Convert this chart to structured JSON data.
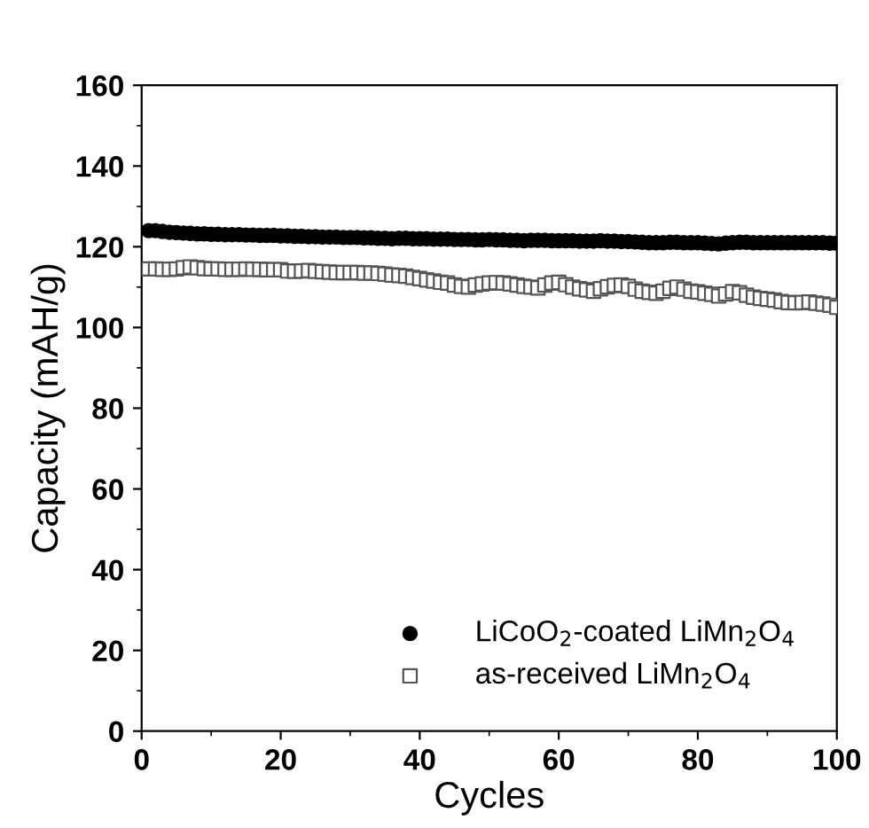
{
  "chart_data": {
    "type": "scatter",
    "xlabel": "Cycles",
    "ylabel": "Capacity (mAH/g)",
    "xlim": [
      0,
      100
    ],
    "xticks": [
      0,
      20,
      40,
      60,
      80,
      100
    ],
    "ylim": [
      0,
      160
    ],
    "yticks": [
      0,
      20,
      40,
      60,
      80,
      100,
      120,
      140,
      160
    ],
    "grid": false,
    "legend": "bottom right",
    "series": [
      {
        "name": "LiCoO$_{2}$-coated LiMn$_{2}$O$_{4}$",
        "color": "#000000",
        "marker": "circle",
        "x": [
          1,
          2,
          3,
          4,
          5,
          6,
          7,
          8,
          9,
          10,
          11,
          12,
          13,
          14,
          15,
          16,
          17,
          18,
          19,
          20,
          21,
          22,
          23,
          24,
          25,
          26,
          27,
          28,
          29,
          30,
          31,
          32,
          33,
          34,
          35,
          36,
          37,
          38,
          39,
          40,
          41,
          42,
          43,
          44,
          45,
          46,
          47,
          48,
          49,
          50,
          51,
          52,
          53,
          54,
          55,
          56,
          57,
          58,
          59,
          60,
          61,
          62,
          63,
          64,
          65,
          66,
          67,
          68,
          69,
          70,
          71,
          72,
          73,
          74,
          75,
          76,
          77,
          78,
          79,
          80,
          81,
          82,
          83,
          84,
          85,
          86,
          87,
          88,
          89,
          90,
          91,
          92,
          93,
          94,
          95,
          96,
          97,
          98,
          99,
          100
        ],
        "values": [
          124,
          124,
          123.8,
          123.6,
          123.5,
          123.4,
          123.3,
          123.2,
          123.2,
          123.1,
          123.1,
          123,
          123,
          123,
          122.9,
          122.9,
          122.8,
          122.8,
          122.8,
          122.7,
          122.7,
          122.6,
          122.6,
          122.5,
          122.5,
          122.4,
          122.4,
          122.4,
          122.3,
          122.3,
          122.3,
          122.2,
          122.2,
          122.1,
          122.1,
          122,
          122.1,
          122.1,
          122,
          122,
          122,
          121.9,
          121.9,
          121.9,
          121.8,
          121.8,
          121.8,
          121.7,
          121.7,
          121.8,
          121.7,
          121.7,
          121.6,
          121.6,
          121.5,
          121.6,
          121.6,
          121.6,
          121.5,
          121.5,
          121.5,
          121.5,
          121.4,
          121.4,
          121.4,
          121.5,
          121.4,
          121.4,
          121.3,
          121.3,
          121.2,
          121.1,
          121,
          121,
          121,
          121.1,
          121.1,
          121,
          121,
          121,
          120.9,
          120.8,
          120.7,
          120.9,
          121,
          121.1,
          121.1,
          121,
          121,
          121,
          121,
          121,
          121,
          121,
          121,
          121,
          121,
          121,
          120.9,
          120.9
        ]
      },
      {
        "name": "as-received LiMn$_{2}$O$_{4}$",
        "color": "#555555",
        "marker": "square",
        "x": [
          1,
          2,
          3,
          4,
          5,
          6,
          7,
          8,
          9,
          10,
          11,
          12,
          13,
          14,
          15,
          16,
          17,
          18,
          19,
          20,
          21,
          22,
          23,
          24,
          25,
          26,
          27,
          28,
          29,
          30,
          31,
          32,
          33,
          34,
          35,
          36,
          37,
          38,
          39,
          40,
          41,
          42,
          43,
          44,
          45,
          46,
          47,
          48,
          49,
          50,
          51,
          52,
          53,
          54,
          55,
          56,
          57,
          58,
          59,
          60,
          61,
          62,
          63,
          64,
          65,
          66,
          67,
          68,
          69,
          70,
          71,
          72,
          73,
          74,
          75,
          76,
          77,
          78,
          79,
          80,
          81,
          82,
          83,
          84,
          85,
          86,
          87,
          88,
          89,
          90,
          91,
          92,
          93,
          94,
          95,
          96,
          97,
          98,
          99,
          100
        ],
        "values": [
          114.5,
          114.5,
          114.4,
          114.4,
          114.5,
          114.8,
          115,
          114.8,
          114.6,
          114.5,
          114.5,
          114.4,
          114.4,
          114.4,
          114.5,
          114.4,
          114.4,
          114.3,
          114.3,
          114.3,
          114,
          113.9,
          114,
          114.1,
          113.9,
          113.8,
          113.7,
          113.6,
          113.6,
          113.6,
          113.6,
          113.5,
          113.5,
          113.4,
          113.2,
          113,
          112.9,
          112.7,
          112.4,
          112.1,
          111.8,
          111.5,
          111.2,
          111,
          110.5,
          110.2,
          110,
          110.5,
          110.8,
          111,
          111.1,
          111,
          110.8,
          110.5,
          110.2,
          110,
          109.8,
          110.5,
          111,
          111.2,
          110.6,
          110,
          109.6,
          109.3,
          109,
          109.6,
          110.1,
          110.4,
          110.5,
          110.2,
          109.5,
          109,
          108.7,
          108.5,
          109,
          109.7,
          110,
          109.5,
          109,
          108.8,
          108.5,
          108.2,
          107.8,
          108.3,
          108.9,
          108.6,
          108,
          107.5,
          107.2,
          107,
          106.8,
          106.4,
          106.2,
          106.1,
          106.2,
          106.3,
          106,
          105.8,
          105.5,
          105
        ]
      }
    ]
  }
}
